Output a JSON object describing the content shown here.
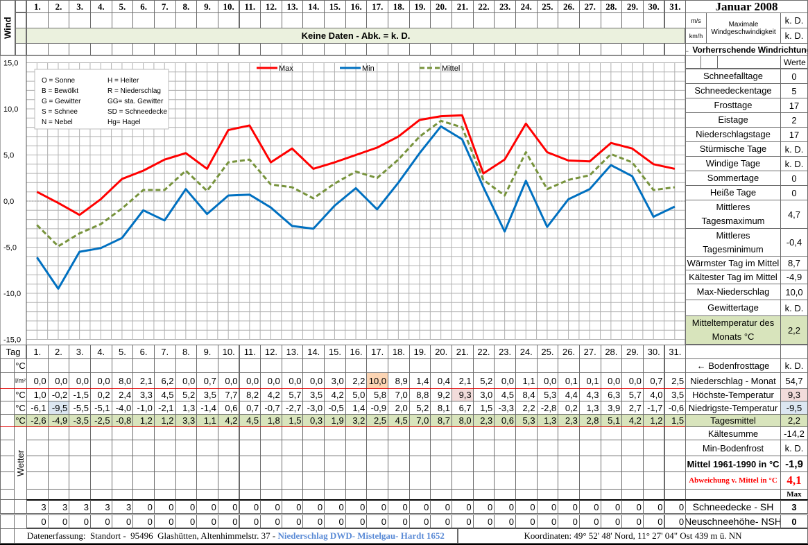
{
  "header": {
    "title": "Januar 2008",
    "wind_label": "Wind",
    "no_data": "Keine Daten - Abk. = k. D.",
    "unit_ms": "m/s",
    "unit_kmh": "km/h",
    "max_wind_label": "Maximale Windgeschwindigkeit",
    "max_wind_ms": "k. D.",
    "max_wind_kmh": "k. D.",
    "wind_direction": "← Vorherrschende Windrichtung",
    "values_label": "Werte"
  },
  "days": [
    "1.",
    "2.",
    "3.",
    "4.",
    "5.",
    "6.",
    "7.",
    "8.",
    "9.",
    "10.",
    "11.",
    "12.",
    "13.",
    "14.",
    "15.",
    "16.",
    "17.",
    "18.",
    "19.",
    "20.",
    "21.",
    "22.",
    "23.",
    "24.",
    "25.",
    "26.",
    "27.",
    "28.",
    "29.",
    "30.",
    "31."
  ],
  "stats": [
    {
      "label": "Schneefalltage",
      "value": "0"
    },
    {
      "label": "Schneedeckentage",
      "value": "5"
    },
    {
      "label": "Frosttage",
      "value": "17"
    },
    {
      "label": "Eistage",
      "value": "2"
    },
    {
      "label": "Niederschlagstage",
      "value": "17"
    },
    {
      "label": "Stürmische Tage",
      "value": "k. D."
    },
    {
      "label": "Windige Tage",
      "value": "k. D."
    },
    {
      "label": "Sommertage",
      "value": "0"
    },
    {
      "label": "Heiße Tage",
      "value": "0"
    },
    {
      "label": "Mittleres Tagesmaximum",
      "value": "4,7"
    },
    {
      "label": "Mittleres Tagesminimum",
      "value": "-0,4"
    },
    {
      "label": "Wärmster Tag im Mittel",
      "value": "8,7"
    },
    {
      "label": "Kältester Tag im Mittel",
      "value": "-4,9"
    },
    {
      "label": "Max-Niederschlag",
      "value": "10,0"
    },
    {
      "label": "Gewittertage",
      "value": "k. D."
    },
    {
      "label": "Mitteltemperatur des Monats °C",
      "value": "2,2"
    }
  ],
  "legend_codes": [
    [
      "O = Sonne",
      "H = Heiter"
    ],
    [
      "B = Bewölkt",
      "R = Niederschlag"
    ],
    [
      "G = Gewitter",
      "GG= sta. Gewitter"
    ],
    [
      "S = Schnee",
      "SD = Schneedecke"
    ],
    [
      "N = Nebel",
      "Hg= Hagel"
    ]
  ],
  "colors": {
    "max": "#ff0000",
    "min": "#0070c0",
    "mean": "#77933c",
    "green": "#d8e4bc",
    "highlight_precip": "#fcd5b4",
    "highlight_max": "#f2dcdb",
    "highlight_min": "#dce6f1"
  },
  "chart_data": {
    "type": "line",
    "x": [
      1,
      2,
      3,
      4,
      5,
      6,
      7,
      8,
      9,
      10,
      11,
      12,
      13,
      14,
      15,
      16,
      17,
      18,
      19,
      20,
      21,
      22,
      23,
      24,
      25,
      26,
      27,
      28,
      29,
      30,
      31
    ],
    "ylim": [
      -15,
      15
    ],
    "yticks": [
      "15,0",
      "10,0",
      "5,0",
      "0,0",
      "-5,0",
      "-10,0",
      "-15,0"
    ],
    "grid": true,
    "legend_position": "top",
    "series": [
      {
        "name": "Max",
        "style": "solid",
        "values": [
          1.0,
          -0.2,
          -1.5,
          0.2,
          2.4,
          3.3,
          4.5,
          5.2,
          3.5,
          7.7,
          8.2,
          4.2,
          5.7,
          3.5,
          4.2,
          5.0,
          5.8,
          7.0,
          8.8,
          9.2,
          9.3,
          3.0,
          4.5,
          8.4,
          5.3,
          4.4,
          4.3,
          6.3,
          5.7,
          4.0,
          3.5
        ]
      },
      {
        "name": "Min",
        "style": "solid",
        "values": [
          -6.1,
          -9.5,
          -5.5,
          -5.1,
          -4.0,
          -1.0,
          -2.1,
          1.3,
          -1.4,
          0.6,
          0.7,
          -0.7,
          -2.7,
          -3.0,
          -0.5,
          1.4,
          -0.9,
          2.0,
          5.2,
          8.1,
          6.7,
          1.5,
          -3.3,
          2.2,
          -2.8,
          0.2,
          1.3,
          3.9,
          2.7,
          -1.7,
          -0.6
        ]
      },
      {
        "name": "Mittel",
        "style": "dashed",
        "values": [
          -2.6,
          -4.9,
          -3.5,
          -2.5,
          -0.8,
          1.2,
          1.2,
          3.3,
          1.1,
          4.2,
          4.5,
          1.8,
          1.5,
          0.3,
          1.9,
          3.2,
          2.5,
          4.5,
          7.0,
          8.7,
          8.0,
          2.3,
          0.6,
          5.3,
          1.3,
          2.3,
          2.8,
          5.1,
          4.2,
          1.2,
          1.5
        ]
      }
    ]
  },
  "table": {
    "tag_label": "Tag",
    "unit_c": "°C",
    "unit_lm2": "l/m²",
    "precip": [
      0.0,
      0.0,
      0.0,
      0.0,
      8.0,
      2.1,
      6.2,
      0.0,
      0.7,
      0.0,
      0.0,
      0.0,
      0.0,
      0.0,
      3.0,
      2.2,
      10.0,
      8.9,
      1.4,
      0.4,
      2.1,
      5.2,
      0.0,
      1.1,
      0.0,
      0.1,
      0.1,
      0.0,
      0.0,
      0.7,
      2.5
    ],
    "rows_right": [
      {
        "label": "← Bodenfrosttage",
        "value": "k. D."
      },
      {
        "label": "Niederschlag - Monat",
        "value": "54,7"
      },
      {
        "label": "Höchste-Temperatur",
        "value": "9,3"
      },
      {
        "label": "Niedrigste-Temperatur",
        "value": "-9,5"
      },
      {
        "label": "Tagesmittel",
        "value": "2,2"
      },
      {
        "label": "Kältesumme",
        "value": "-14,2"
      },
      {
        "label": "Min-Bodenfrost",
        "value": "k. D."
      },
      {
        "label": "Mittel 1961-1990 in °C",
        "value": "-1,9"
      },
      {
        "label": "Abweichung v. Mittel in °C",
        "value": "4,1"
      },
      {
        "label": "",
        "value": "Max"
      }
    ],
    "weather_label": "Wetter",
    "snow_depth": {
      "label": "Schneedecke -   SH",
      "max": "3",
      "values": [
        3,
        3,
        3,
        3,
        3,
        0,
        0,
        0,
        0,
        0,
        0,
        0,
        0,
        0,
        0,
        0,
        0,
        0,
        0,
        0,
        0,
        0,
        0,
        0,
        0,
        0,
        0,
        0,
        0,
        0,
        0
      ]
    },
    "new_snow": {
      "label": "Neuschneehöhe- NSH",
      "max": "0",
      "values": [
        0,
        0,
        0,
        0,
        0,
        0,
        0,
        0,
        0,
        0,
        0,
        0,
        0,
        0,
        0,
        0,
        0,
        0,
        0,
        0,
        0,
        0,
        0,
        0,
        0,
        0,
        0,
        0,
        0,
        0,
        0
      ]
    }
  },
  "footer": {
    "source": "Datenerfassung:  Standort -  95496  Glashütten, Altenhimmelstr. 37 - ",
    "source_highlight": "Niederschlag DWD- Mistelgau- Hardt 1652",
    "coordinates": "Koordinaten:  49° 52' 48' Nord,   11° 27' 04\" Ost   439 m ü. NN"
  }
}
